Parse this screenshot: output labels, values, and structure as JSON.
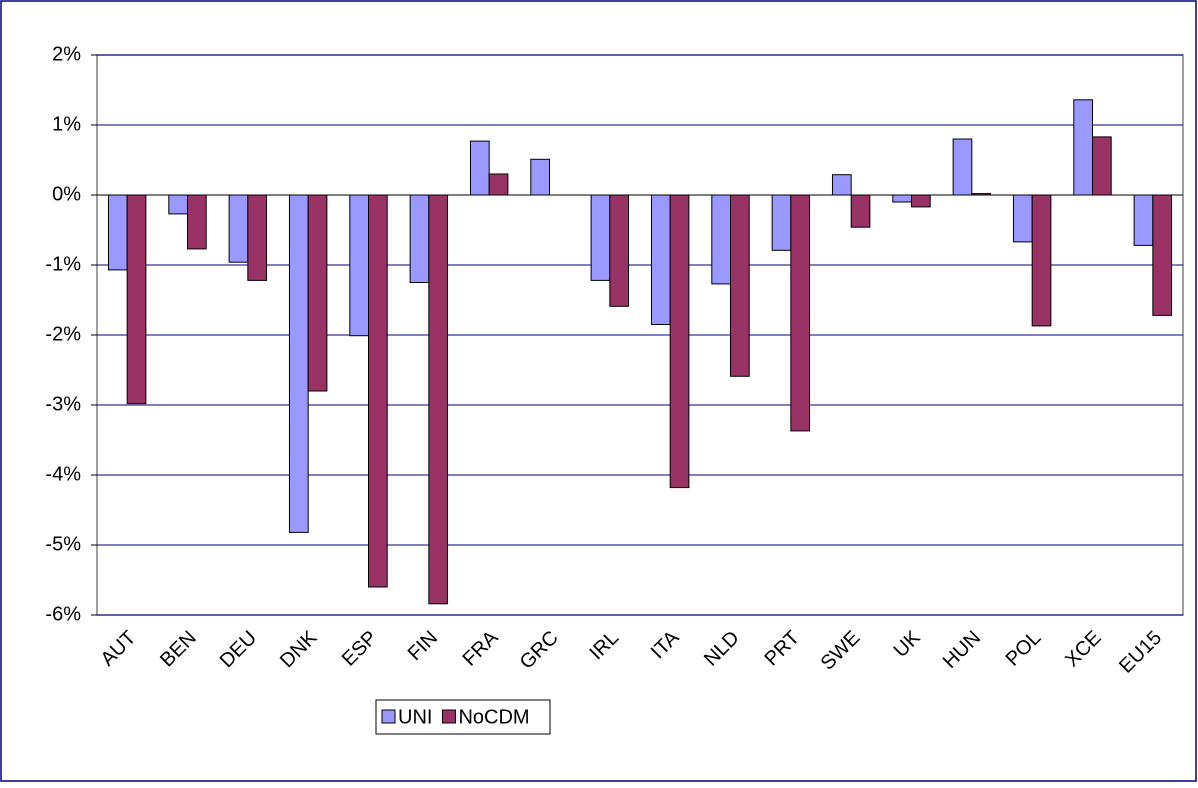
{
  "chart_data": {
    "type": "bar",
    "categories": [
      "AUT",
      "BEN",
      "DEU",
      "DNK",
      "ESP",
      "FIN",
      "FRA",
      "GRC",
      "IRL",
      "ITA",
      "NLD",
      "PRT",
      "SWE",
      "UK",
      "HUN",
      "POL",
      "XCE",
      "EU15"
    ],
    "series": [
      {
        "name": "UNI",
        "color": "#9999ff",
        "values": [
          -1.07,
          -0.27,
          -0.96,
          -4.82,
          -2.01,
          -1.25,
          0.77,
          0.51,
          -1.22,
          -1.85,
          -1.27,
          -0.79,
          0.29,
          -0.1,
          0.8,
          -0.67,
          1.36,
          -0.72
        ]
      },
      {
        "name": "NoCDM",
        "color": "#993366",
        "values": [
          -2.98,
          -0.77,
          -1.22,
          -2.8,
          -5.6,
          -5.84,
          0.3,
          0,
          -1.59,
          -4.18,
          -2.59,
          -3.37,
          -0.46,
          -0.17,
          0.02,
          -1.87,
          0.83,
          -1.72
        ]
      }
    ],
    "ylim": [
      -6,
      2
    ],
    "yticks": [
      {
        "value": -6,
        "label": "-6%"
      },
      {
        "value": -5,
        "label": "-5%"
      },
      {
        "value": -4,
        "label": "-4%"
      },
      {
        "value": -3,
        "label": "-3%"
      },
      {
        "value": -2,
        "label": "-2%"
      },
      {
        "value": -1,
        "label": "-1%"
      },
      {
        "value": 0,
        "label": "0%"
      },
      {
        "value": 1,
        "label": "1%"
      },
      {
        "value": 2,
        "label": "2%"
      }
    ],
    "grid": true,
    "legend": "bottom"
  }
}
